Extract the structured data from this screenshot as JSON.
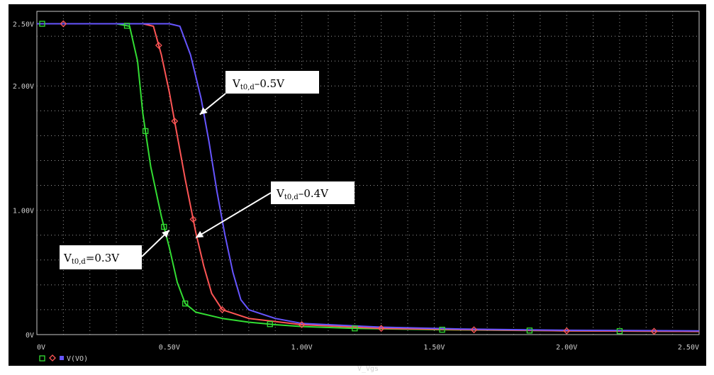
{
  "chart_data": {
    "type": "line",
    "xlabel": "V_Vgs",
    "ylabel": "",
    "xlim": [
      0,
      2.5
    ],
    "ylim": [
      0,
      2.6
    ],
    "grid": true,
    "background": "#000000",
    "x_ticks": [
      {
        "value": 0,
        "label": "0V"
      },
      {
        "value": 0.5,
        "label": "0.50V"
      },
      {
        "value": 1.0,
        "label": "1.00V"
      },
      {
        "value": 1.5,
        "label": "1.50V"
      },
      {
        "value": 2.0,
        "label": "2.00V"
      },
      {
        "value": 2.5,
        "label": "2.50V"
      }
    ],
    "y_ticks": [
      {
        "value": 0,
        "label": "0V"
      },
      {
        "value": 1.0,
        "label": "1.00V"
      },
      {
        "value": 2.0,
        "label": "2.00V"
      },
      {
        "value": 2.5,
        "label": "2.50V"
      }
    ],
    "legend_items": [
      {
        "marker": "square",
        "color": "#33dd33",
        "label": ""
      },
      {
        "marker": "diamond",
        "color": "#ff5555",
        "label": ""
      },
      {
        "marker": "none",
        "color": "#6655ff",
        "label": "V(VO)"
      }
    ],
    "series": [
      {
        "color": "#33dd33",
        "marker": "square",
        "points": [
          [
            0,
            2.5
          ],
          [
            0.3,
            2.5
          ],
          [
            0.35,
            2.48
          ],
          [
            0.38,
            2.2
          ],
          [
            0.4,
            1.78
          ],
          [
            0.43,
            1.35
          ],
          [
            0.47,
            0.95
          ],
          [
            0.5,
            0.7
          ],
          [
            0.53,
            0.42
          ],
          [
            0.56,
            0.25
          ],
          [
            0.6,
            0.18
          ],
          [
            0.7,
            0.13
          ],
          [
            0.8,
            0.1
          ],
          [
            0.9,
            0.08
          ],
          [
            1.0,
            0.065
          ],
          [
            1.2,
            0.05
          ],
          [
            1.5,
            0.04
          ],
          [
            2.0,
            0.03
          ],
          [
            2.5,
            0.025
          ]
        ],
        "marker_x": [
          0.02,
          0.34,
          0.41,
          0.48,
          0.56,
          0.88,
          1.2,
          1.53,
          1.86,
          2.2
        ]
      },
      {
        "color": "#ff5555",
        "marker": "diamond",
        "points": [
          [
            0,
            2.5
          ],
          [
            0.4,
            2.5
          ],
          [
            0.44,
            2.48
          ],
          [
            0.47,
            2.25
          ],
          [
            0.5,
            1.95
          ],
          [
            0.53,
            1.6
          ],
          [
            0.56,
            1.25
          ],
          [
            0.6,
            0.82
          ],
          [
            0.63,
            0.55
          ],
          [
            0.66,
            0.33
          ],
          [
            0.7,
            0.2
          ],
          [
            0.8,
            0.13
          ],
          [
            1.0,
            0.08
          ],
          [
            1.3,
            0.05
          ],
          [
            1.6,
            0.04
          ],
          [
            2.0,
            0.03
          ],
          [
            2.5,
            0.025
          ]
        ],
        "marker_x": [
          0.1,
          0.46,
          0.52,
          0.59,
          0.7,
          1.0,
          1.3,
          1.65,
          2.0,
          2.33
        ]
      },
      {
        "color": "#6655ff",
        "marker": "none",
        "points": [
          [
            0,
            2.5
          ],
          [
            0.5,
            2.5
          ],
          [
            0.54,
            2.48
          ],
          [
            0.58,
            2.25
          ],
          [
            0.62,
            1.9
          ],
          [
            0.65,
            1.55
          ],
          [
            0.68,
            1.15
          ],
          [
            0.71,
            0.8
          ],
          [
            0.74,
            0.5
          ],
          [
            0.77,
            0.28
          ],
          [
            0.8,
            0.2
          ],
          [
            0.9,
            0.13
          ],
          [
            1.0,
            0.09
          ],
          [
            1.3,
            0.06
          ],
          [
            1.6,
            0.045
          ],
          [
            2.0,
            0.035
          ],
          [
            2.5,
            0.03
          ]
        ],
        "marker_x": []
      }
    ],
    "annotations": [
      {
        "main": "V",
        "sub": "t0,d",
        "suffix": "–0.5V",
        "arrow_to": [
          0.615,
          1.77
        ]
      },
      {
        "main": "V",
        "sub": "t0,d",
        "suffix": "–0.4V",
        "arrow_to": [
          0.6,
          0.78
        ]
      },
      {
        "main": "V",
        "sub": "t0,d",
        "suffix": "=0.3V",
        "arrow_to": [
          0.5,
          0.84
        ]
      }
    ]
  }
}
